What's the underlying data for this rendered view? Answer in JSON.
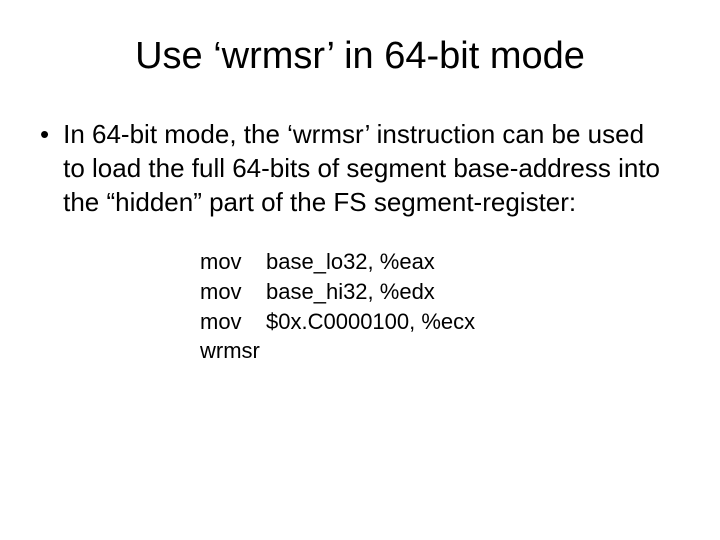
{
  "title": "Use ‘wrmsr’ in 64-bit mode",
  "bullet": "•",
  "body": "In 64-bit mode, the ‘wrmsr’ instruction can be used to load the full 64-bits of segment base-address into the “hidden” part of the FS segment-register:",
  "code": {
    "line1": "mov    base_lo32, %eax",
    "line2": "mov    base_hi32, %edx",
    "line3": "mov    $0x.C0000100, %ecx",
    "line4": "wrmsr"
  }
}
